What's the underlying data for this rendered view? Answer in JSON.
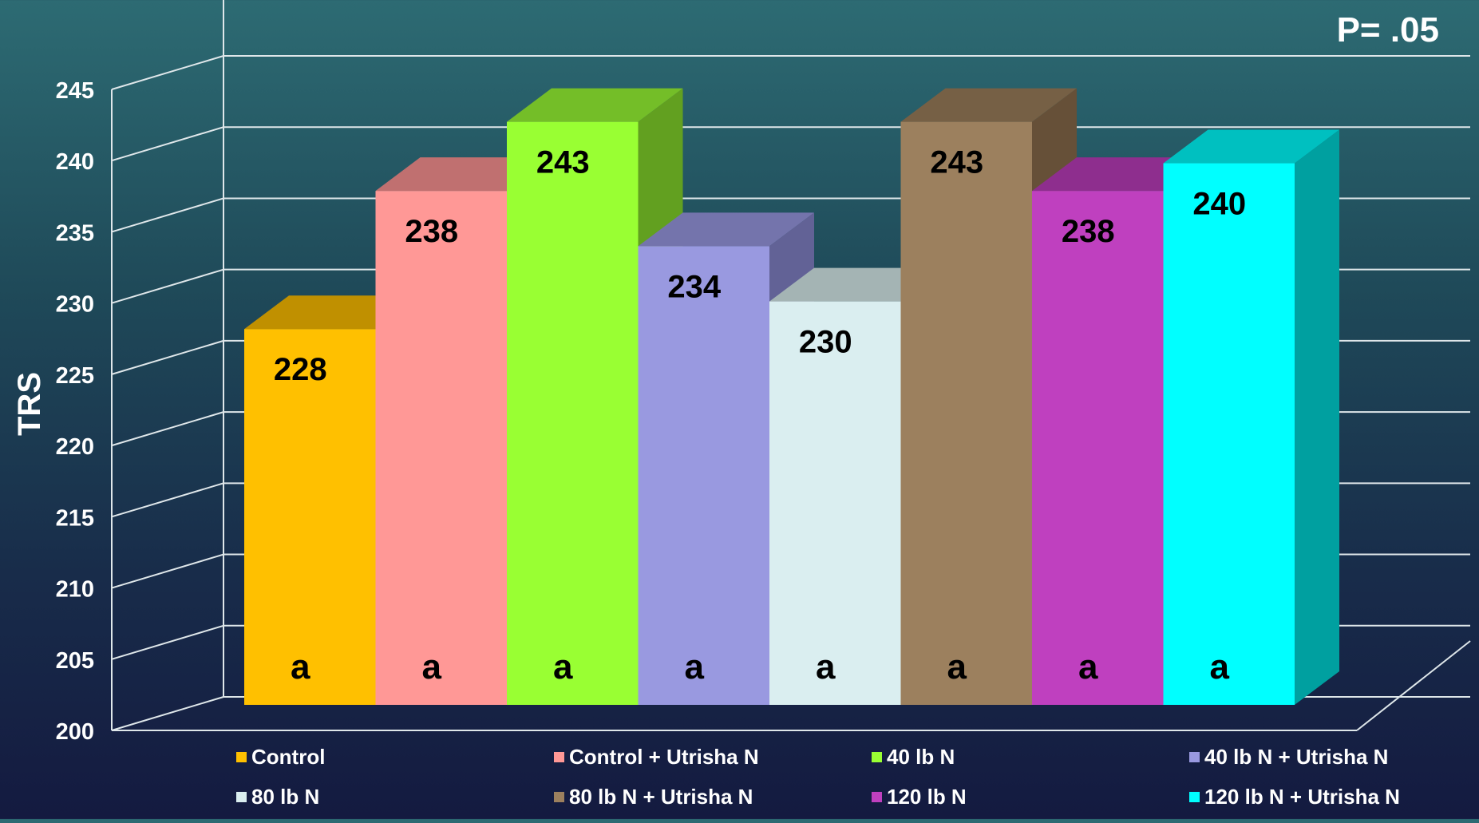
{
  "chart_data": {
    "type": "bar",
    "title": "",
    "annotation": "P= .05",
    "ylabel": "TRS",
    "xlabel": "",
    "ylim": [
      200,
      245
    ],
    "yticks": [
      200,
      205,
      210,
      215,
      220,
      225,
      230,
      235,
      240,
      245
    ],
    "grid": true,
    "legend_position": "bottom",
    "categories": [
      "Control",
      "Control + Utrisha N",
      "40 lb N",
      "40 lb N + Utrisha N",
      "80 lb N",
      "80 lb N + Utrisha N",
      "120 lb N",
      "120 lb N + Utrisha N"
    ],
    "values": [
      228,
      238,
      243,
      234,
      230,
      243,
      238,
      240
    ],
    "value_labels": [
      "228",
      "238",
      "243",
      "234",
      "230",
      "243",
      "238",
      "240"
    ],
    "significance_letters": [
      "a",
      "a",
      "a",
      "a",
      "a",
      "a",
      "a",
      "a"
    ],
    "colors": [
      "#ffc000",
      "#ff9896",
      "#99ff33",
      "#9999e0",
      "#daeef0",
      "#9c805e",
      "#bf40bf",
      "#00ffff"
    ],
    "top_colors": [
      "#c09000",
      "#c07070",
      "#74be28",
      "#7474ac",
      "#a4b4b4",
      "#766045",
      "#8e2e8e",
      "#00c0c0"
    ],
    "side_colors": [
      "#a07800",
      "#a05c5c",
      "#62a020",
      "#626296",
      "#8c9c9c",
      "#665038",
      "#7a267a",
      "#00a0a0"
    ]
  }
}
